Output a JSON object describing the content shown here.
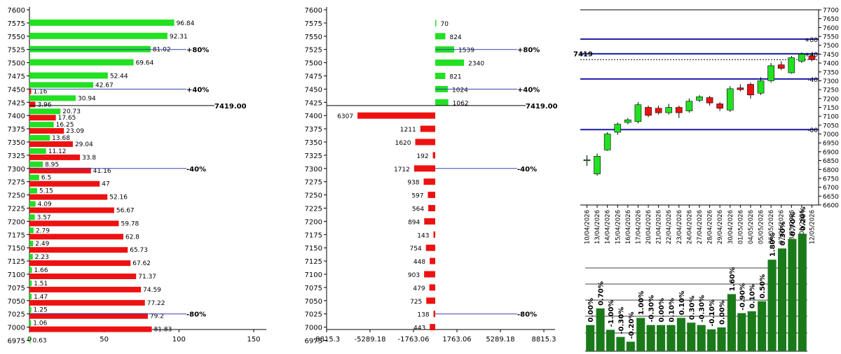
{
  "chart_data": [
    {
      "type": "bar",
      "orientation": "horizontal",
      "xlim": [
        0,
        150
      ],
      "xticks": [
        "0",
        "50",
        "100",
        "150"
      ],
      "strikes": [
        "7600",
        "7575",
        "7550",
        "7525",
        "7500",
        "7475",
        "7450",
        "7425",
        "7400",
        "7375",
        "7350",
        "7325",
        "7300",
        "7275",
        "7250",
        "7225",
        "7200",
        "7175",
        "7150",
        "7125",
        "7100",
        "7075",
        "7050",
        "7025",
        "7000",
        "6975"
      ],
      "series": [
        {
          "color": "#22e022",
          "values": [
            null,
            96.84,
            92.31,
            81.02,
            69.64,
            52.44,
            42.67,
            30.94,
            20.73,
            16.25,
            13.68,
            11.12,
            8.95,
            6.5,
            5.15,
            4.09,
            3.57,
            2.79,
            2.49,
            2.23,
            1.66,
            1.51,
            1.47,
            1.25,
            1.06,
            0.63
          ],
          "labels": [
            "",
            "96.84",
            "92.31",
            "81.02",
            "69.64",
            "52.44",
            "42.67",
            "30.94",
            "20.73",
            "16.25",
            "13.68",
            "11.12",
            "8.95",
            "6.5",
            "5.15",
            "4.09",
            "3.57",
            "2.79",
            "2.49",
            "2.23",
            "1.66",
            "1.51",
            "1.47",
            "1.25",
            "1.06",
            "0.63"
          ]
        },
        {
          "color": "#ee1111",
          "values": [
            null,
            null,
            null,
            null,
            null,
            null,
            1.16,
            3.96,
            17.65,
            23.09,
            29.04,
            33.8,
            41.16,
            47,
            52.16,
            56.67,
            59.78,
            62.8,
            65.73,
            67.62,
            71.37,
            74.59,
            77.22,
            79.2,
            81.83,
            null
          ],
          "labels": [
            "",
            "",
            "",
            "",
            "",
            "",
            "1.16",
            "3.96",
            "17.65",
            "23.09",
            "29.04",
            "33.8",
            "41.16",
            "47",
            "52.16",
            "56.67",
            "59.78",
            "62.8",
            "65.73",
            "67.62",
            "71.37",
            "74.59",
            "77.22",
            "79.2",
            "81.83",
            ""
          ]
        }
      ],
      "annotations": [
        {
          "strike": "7525",
          "label": "+80%"
        },
        {
          "strike": "7450",
          "label": "+40%"
        },
        {
          "strike": "7300",
          "label": "-40%"
        },
        {
          "strike": "7025",
          "label": "-80%"
        }
      ],
      "current": {
        "strike": "7419.00",
        "label": "7419.00"
      }
    },
    {
      "type": "bar",
      "orientation": "horizontal-diverging",
      "xlim": [
        -8815.3,
        8815.3
      ],
      "xticks": [
        "-8815.3",
        "-5289.18",
        "-1763.06",
        "1763.06",
        "5289.18",
        "8815.3"
      ],
      "strikes": [
        "7600",
        "7575",
        "7550",
        "7525",
        "7500",
        "7475",
        "7450",
        "7425",
        "7400",
        "7375",
        "7350",
        "7325",
        "7300",
        "7275",
        "7250",
        "7225",
        "7200",
        "7175",
        "7150",
        "7125",
        "7100",
        "7075",
        "7050",
        "7025",
        "7000",
        "6975"
      ],
      "values": [
        null,
        70,
        824,
        1539,
        2340,
        821,
        1024,
        1062,
        -6307,
        -1211,
        -1620,
        -192,
        -1712,
        -938,
        -597,
        -564,
        -894,
        -143,
        -754,
        -448,
        -903,
        -479,
        -725,
        -138,
        -443,
        null
      ],
      "labels": [
        "",
        "70",
        "824",
        "1539",
        "2340",
        "821",
        "1024",
        "1062",
        "6307",
        "1211",
        "1620",
        "192",
        "1712",
        "938",
        "597",
        "564",
        "894",
        "143",
        "754",
        "448",
        "903",
        "479",
        "725",
        "138",
        "443",
        ""
      ],
      "annotations": [
        {
          "strike": "7525",
          "label": "+80%"
        },
        {
          "strike": "7450",
          "label": "+40%"
        },
        {
          "strike": "7300",
          "label": "-40%"
        },
        {
          "strike": "7025",
          "label": "-80%"
        }
      ],
      "current": {
        "strike": "7419.00",
        "label": "7419.00"
      }
    },
    {
      "type": "candlestick",
      "ylim": [
        6600,
        7700
      ],
      "yticks": [
        "7700",
        "7650",
        "7600",
        "7550",
        "7500",
        "7450",
        "7400",
        "7350",
        "7300",
        "7250",
        "7200",
        "7150",
        "7100",
        "7050",
        "7000",
        "6950",
        "6900",
        "6850",
        "6800",
        "6750",
        "6700",
        "6650",
        "6600"
      ],
      "dates": [
        "10/04/2026",
        "13/04/2026",
        "14/04/2026",
        "15/04/2026",
        "16/04/2026",
        "17/04/2026",
        "20/04/2026",
        "21/04/2026",
        "22/04/2026",
        "23/04/2026",
        "24/04/2026",
        "27/04/2026",
        "28/04/2026",
        "29/04/2026",
        "30/04/2026",
        "01/05/2026",
        "04/05/2026",
        "05/05/2026",
        "06/05/2026",
        "07/05/2026",
        "08/05/2026",
        "11/05/2026",
        "12/05/2026"
      ],
      "ohlc": [
        [
          6855,
          6880,
          6820,
          6855
        ],
        [
          6775,
          6890,
          6765,
          6875
        ],
        [
          6910,
          7010,
          6905,
          7000
        ],
        [
          7010,
          7065,
          6995,
          7055
        ],
        [
          7065,
          7090,
          7055,
          7080
        ],
        [
          7070,
          7180,
          7060,
          7165
        ],
        [
          7150,
          7160,
          7095,
          7105
        ],
        [
          7145,
          7160,
          7110,
          7120
        ],
        [
          7120,
          7170,
          7110,
          7150
        ],
        [
          7150,
          7160,
          7090,
          7120
        ],
        [
          7130,
          7200,
          7120,
          7185
        ],
        [
          7190,
          7220,
          7180,
          7210
        ],
        [
          7205,
          7215,
          7160,
          7175
        ],
        [
          7170,
          7180,
          7130,
          7145
        ],
        [
          7135,
          7270,
          7125,
          7255
        ],
        [
          7260,
          7280,
          7240,
          7250
        ],
        [
          7280,
          7290,
          7200,
          7220
        ],
        [
          7230,
          7320,
          7220,
          7300
        ],
        [
          7300,
          7400,
          7290,
          7385
        ],
        [
          7390,
          7410,
          7360,
          7370
        ],
        [
          7345,
          7440,
          7340,
          7430
        ],
        [
          7410,
          7460,
          7400,
          7450
        ],
        [
          7440,
          7450,
          7410,
          7420
        ]
      ],
      "levels": [
        {
          "value": 7535,
          "label": "+80"
        },
        {
          "value": 7452,
          "label": "+40"
        },
        {
          "value": 7310,
          "label": "-40"
        },
        {
          "value": 7025,
          "label": "-80"
        }
      ],
      "current": {
        "value": 7419,
        "label": "7419"
      }
    },
    {
      "type": "bar",
      "values": [
        0.0,
        0.7,
        -1.0,
        -0.3,
        -0.2,
        1.0,
        -0.3,
        0.0,
        0.1,
        0.1,
        0.3,
        -0.3,
        -0.1,
        0.0,
        1.6,
        -0.9,
        0.1,
        0.5,
        1.8,
        0.3,
        0.7,
        0.2
      ],
      "labels": [
        "0.00%",
        "0.70%",
        "-1.00%",
        "-0.30%",
        "-0.20%",
        "1.00%",
        "-0.30%",
        "0.00%",
        "0.10%",
        "0.10%",
        "0.30%",
        "-0.30%",
        "-0.10%",
        "0.00%",
        "1.60%",
        "-0.90%",
        "0.10%",
        "0.50%",
        "1.80%",
        "0.30%",
        "0.70%",
        "0.20%"
      ],
      "heights": [
        0.275,
        0.45,
        0.225,
        0.15,
        0.1,
        0.35,
        0.275,
        0.275,
        0.275,
        0.35,
        0.3,
        0.275,
        0.23,
        0.25,
        0.6,
        0.4,
        0.42,
        0.525,
        0.962,
        1.08,
        1.18,
        1.235
      ],
      "color": "#1a7a1a"
    }
  ]
}
